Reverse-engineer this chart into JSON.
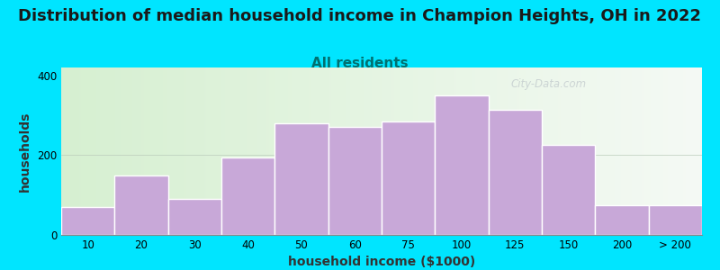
{
  "title": "Distribution of median household income in Champion Heights, OH in 2022",
  "subtitle": "All residents",
  "xlabel": "household income ($1000)",
  "ylabel": "households",
  "bar_labels": [
    "10",
    "20",
    "30",
    "40",
    "50",
    "60",
    "75",
    "100",
    "125",
    "150",
    "200",
    "> 200"
  ],
  "bar_values": [
    70,
    150,
    90,
    195,
    280,
    270,
    285,
    350,
    315,
    225,
    75,
    75
  ],
  "bar_color": "#c8a8d8",
  "bar_edgecolor": "#ffffff",
  "ylim": [
    0,
    420
  ],
  "yticks": [
    0,
    200,
    400
  ],
  "background_outer": "#00e5ff",
  "background_inner_left": "#d8f0d0",
  "background_inner_right": "#f0f5f0",
  "title_fontsize": 13,
  "subtitle_fontsize": 11,
  "subtitle_color": "#007070",
  "axis_label_fontsize": 10,
  "watermark_text": "City-Data.com",
  "watermark_color": "#b0b8c0",
  "watermark_alpha": 0.55
}
